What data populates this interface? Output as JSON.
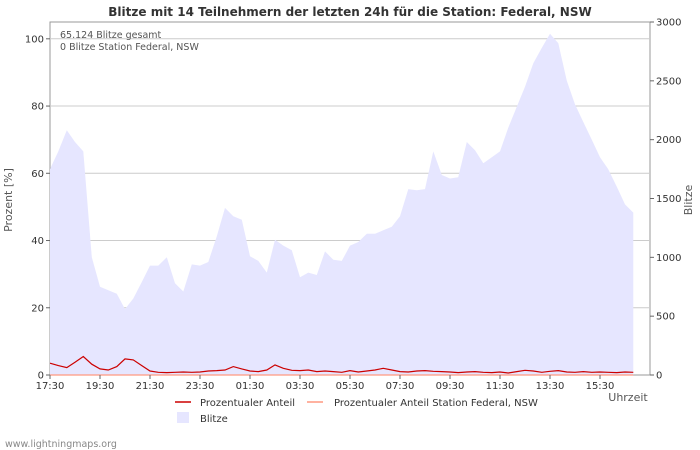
{
  "chart_data": {
    "type": "area",
    "title": "Blitze mit 14 Teilnehmern der letzten 24h für die Station: Federal, NSW",
    "ylabel_left": "Prozent   [%]",
    "ylabel_right": "Blitze",
    "xlabel": "Uhrzeit",
    "ylim_left": [
      0,
      105
    ],
    "ylim_right": [
      0,
      3000
    ],
    "yticks_left": [
      "0",
      "20",
      "40",
      "60",
      "80",
      "100"
    ],
    "yticks_right": [
      "0",
      "500",
      "1000",
      "1500",
      "2000",
      "2500",
      "3000"
    ],
    "xticks": [
      "17:30",
      "19:30",
      "21:30",
      "23:30",
      "01:30",
      "03:30",
      "05:30",
      "07:30",
      "09:30",
      "11:30",
      "13:30",
      "15:30"
    ],
    "x_hours_from_start": [
      0,
      0.33,
      0.67,
      1,
      1.33,
      1.67,
      2,
      2.33,
      2.67,
      3,
      3.33,
      3.67,
      4,
      4.33,
      4.67,
      5,
      5.33,
      5.67,
      6,
      6.33,
      6.67,
      7,
      7.33,
      7.67,
      8,
      8.33,
      8.67,
      9,
      9.33,
      9.67,
      10,
      10.33,
      10.67,
      11,
      11.33,
      11.67,
      12,
      12.33,
      12.67,
      13,
      13.33,
      13.67,
      14,
      14.33,
      14.67,
      15,
      15.33,
      15.67,
      16,
      16.33,
      16.67,
      17,
      17.33,
      17.67,
      18,
      18.33,
      18.67,
      19,
      19.33,
      19.67,
      20,
      20.33,
      20.67,
      21,
      21.33,
      21.67,
      22,
      22.33,
      22.67,
      23,
      23.33
    ],
    "series": [
      {
        "name": "Prozentualer Anteil",
        "axis": "left",
        "color": "#cc0000",
        "values": [
          3.5,
          2.8,
          2.2,
          3.8,
          5.5,
          3.2,
          1.8,
          1.5,
          2.5,
          4.8,
          4.5,
          2.8,
          1.2,
          0.8,
          0.7,
          0.8,
          0.9,
          0.8,
          0.9,
          1.2,
          1.3,
          1.5,
          2.5,
          1.8,
          1.2,
          1.0,
          1.5,
          3.0,
          2.0,
          1.4,
          1.3,
          1.5,
          1.0,
          1.2,
          1.0,
          0.8,
          1.3,
          0.9,
          1.2,
          1.5,
          2.0,
          1.5,
          1.0,
          0.9,
          1.2,
          1.3,
          1.1,
          1.0,
          0.9,
          0.7,
          0.9,
          1.0,
          0.8,
          0.7,
          0.9,
          0.6,
          1.0,
          1.4,
          1.2,
          0.8,
          1.1,
          1.3,
          0.9,
          0.8,
          1.0,
          0.8,
          0.9,
          0.8,
          0.7,
          0.9,
          0.8
        ]
      },
      {
        "name": "Prozentualer Anteil Station Federal, NSW",
        "axis": "left",
        "color": "#ff9980",
        "values": [
          0,
          0,
          0,
          0,
          0,
          0,
          0,
          0,
          0,
          0,
          0,
          0,
          0,
          0,
          0,
          0,
          0,
          0,
          0,
          0,
          0,
          0,
          0,
          0,
          0,
          0,
          0,
          0,
          0,
          0,
          0,
          0,
          0,
          0,
          0,
          0,
          0,
          0,
          0,
          0,
          0,
          0,
          0,
          0,
          0,
          0,
          0,
          0,
          0,
          0,
          0,
          0,
          0,
          0,
          0,
          0,
          0,
          0,
          0,
          0,
          0,
          0,
          0,
          0,
          0,
          0,
          0,
          0,
          0,
          0,
          0
        ]
      },
      {
        "name": "Blitze",
        "axis": "right",
        "color": "#e6e6ff",
        "values": [
          1750,
          1900,
          2080,
          1980,
          1900,
          1000,
          750,
          720,
          690,
          560,
          650,
          790,
          930,
          930,
          1000,
          780,
          710,
          940,
          930,
          960,
          1180,
          1420,
          1350,
          1320,
          1010,
          970,
          870,
          1150,
          1100,
          1060,
          830,
          870,
          850,
          1050,
          980,
          970,
          1100,
          1130,
          1200,
          1200,
          1230,
          1260,
          1350,
          1580,
          1570,
          1580,
          1900,
          1700,
          1670,
          1680,
          1980,
          1910,
          1800,
          1850,
          1900,
          2100,
          2280,
          2450,
          2650,
          2780,
          2900,
          2820,
          2500,
          2300,
          2150,
          2000,
          1850,
          1750,
          1600,
          1450,
          1380
        ]
      }
    ],
    "annotations": [
      "65.124 Blitze gesamt",
      "0 Blitze Station Federal, NSW"
    ]
  },
  "footer": "www.lightningmaps.org"
}
